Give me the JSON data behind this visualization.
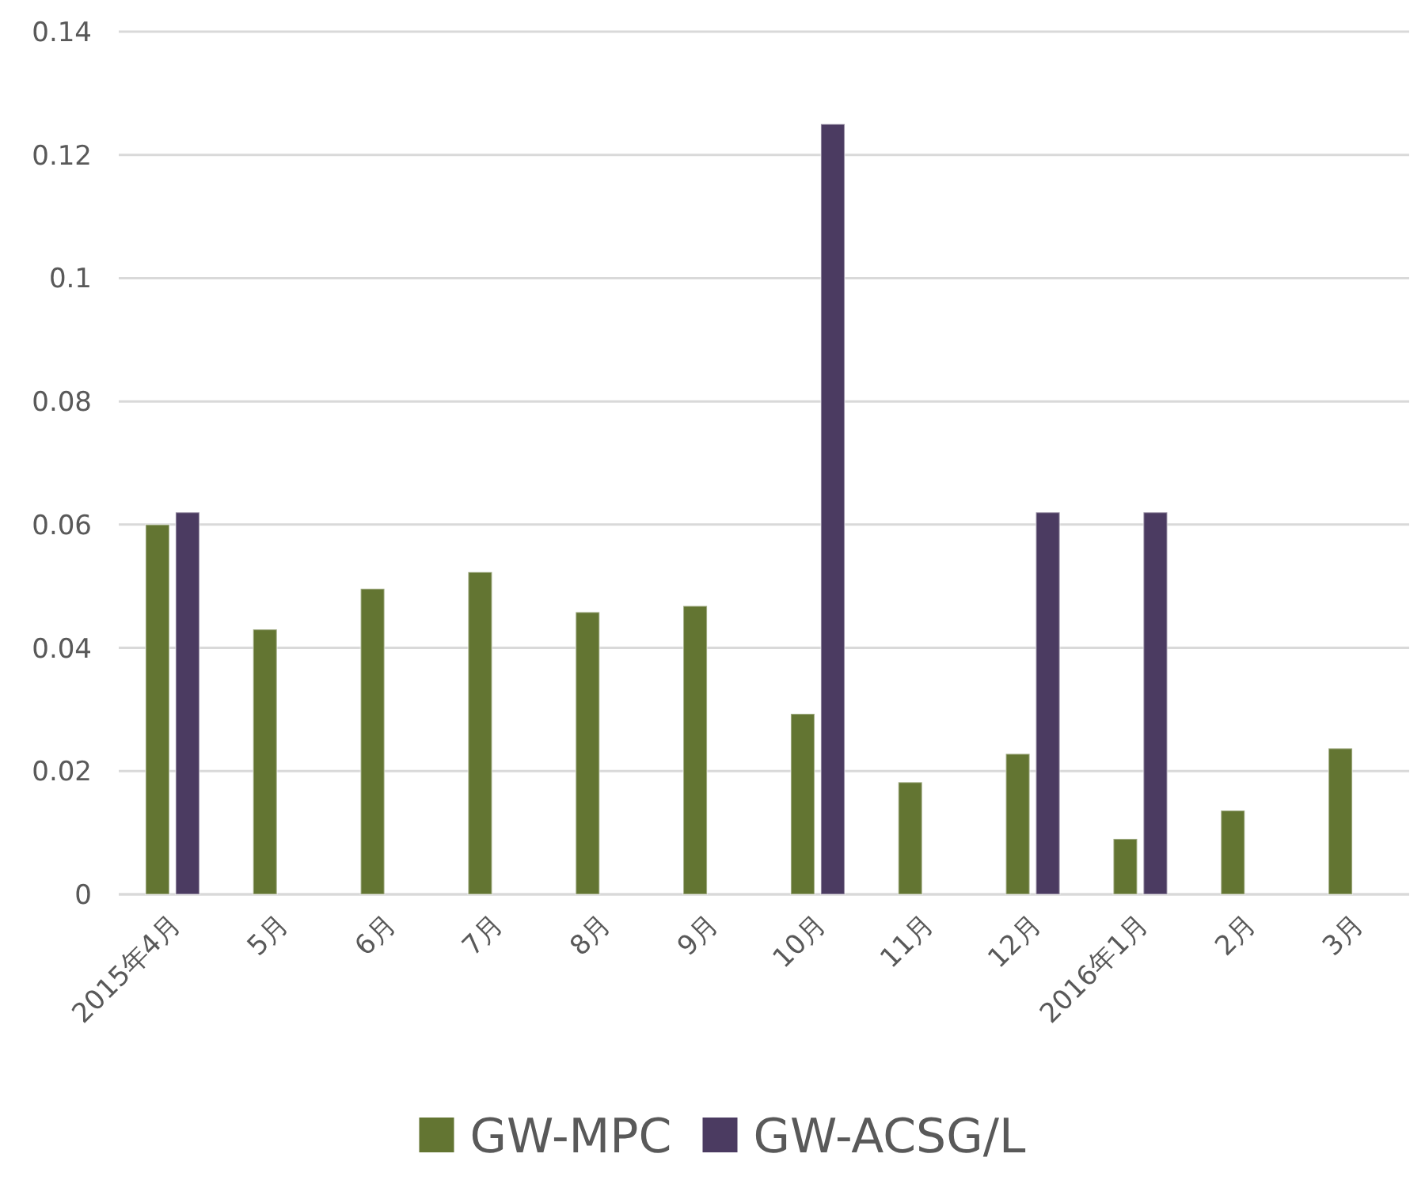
{
  "chart_data": {
    "type": "bar",
    "categories": [
      "2015年4月",
      "5月",
      "6月",
      "7月",
      "8月",
      "9月",
      "10月",
      "11月",
      "12月",
      "2016年1月",
      "2月",
      "3月"
    ],
    "series": [
      {
        "name": "GW-MPC",
        "color": "#637532",
        "values": [
          0.06,
          0.043,
          0.0496,
          0.0523,
          0.0458,
          0.0468,
          0.0293,
          0.0182,
          0.0228,
          0.009,
          0.0136,
          0.0237
        ]
      },
      {
        "name": "GW-ACSG/L",
        "color": "#4b3b61",
        "values": [
          0.062,
          null,
          null,
          null,
          null,
          null,
          0.125,
          null,
          0.062,
          0.062,
          null,
          null
        ]
      }
    ],
    "ylim": [
      0,
      0.14
    ],
    "yticks": [
      0,
      0.02,
      0.04,
      0.06,
      0.08,
      0.1,
      0.12,
      0.14
    ],
    "grid": "y",
    "legend": "bottom"
  }
}
